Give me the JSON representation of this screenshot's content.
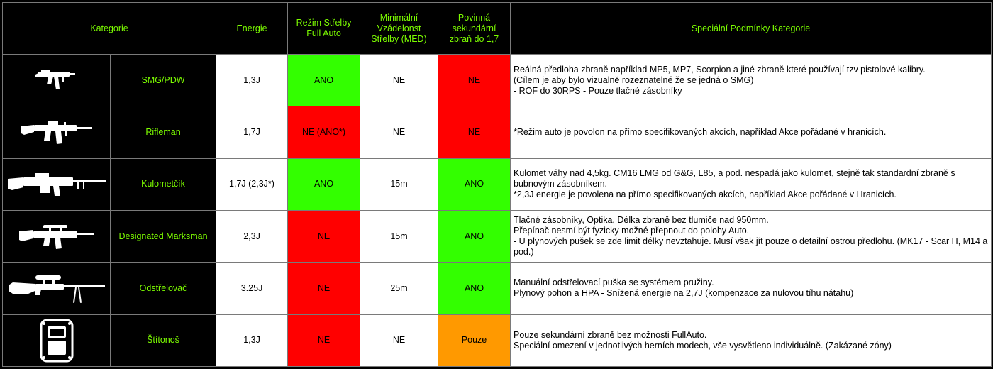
{
  "headers": {
    "kategorie": "Kategorie",
    "energie": "Energie",
    "rezim": "Režim Střelby Full Auto",
    "med": "Minimální Vzádelonst Střelby (MED)",
    "sekundarni": "Povinná sekundární zbraň do 1,7",
    "podminky": "Speciální Podmínky Kategorie"
  },
  "rows": [
    {
      "icon": "smg-icon",
      "category": "SMG/PDW",
      "energy": "1,3J",
      "full_auto": "ANO",
      "full_auto_color": "#33ff00",
      "med": "NE",
      "secondary": "NE",
      "secondary_color": "#ff0000",
      "conditions": [
        "Reálná předloha zbraně například MP5, MP7, Scorpion a jiné zbraně které používají tzv pistolové kalibry.",
        "(Cílem je aby bylo vizualně rozeznatelné že se jedná o SMG)",
        "- ROF do 30RPS - Pouze tlačné zásobníky"
      ]
    },
    {
      "icon": "rifle-icon",
      "category": "Rifleman",
      "energy": "1,7J",
      "full_auto": "NE (ANO*)",
      "full_auto_color": "#ff0000",
      "med": "NE",
      "secondary": "NE",
      "secondary_color": "#ff0000",
      "conditions": [
        "*Režim auto je povolon na přímo specifikovaných akcích, například Akce pořádané v hranicích."
      ]
    },
    {
      "icon": "machine-gun-icon",
      "category": "Kulometčík",
      "energy": "1,7J (2,3J*)",
      "full_auto": "ANO",
      "full_auto_color": "#33ff00",
      "med": "15m",
      "secondary": "ANO",
      "secondary_color": "#33ff00",
      "conditions": [
        "Kulomet váhy nad 4,5kg. CM16 LMG od G&G, L85, a pod. nespadá jako kulomet, stejně tak standardní zbraně s bubnovým zásobníkem.",
        "*2,3J energie je povolena na přímo specifikovaných akcích, například Akce pořádané v Hranicích."
      ]
    },
    {
      "icon": "marksman-rifle-icon",
      "category": "Designated Marksman",
      "energy": "2,3J",
      "full_auto": "NE",
      "full_auto_color": "#ff0000",
      "med": "15m",
      "secondary": "ANO",
      "secondary_color": "#33ff00",
      "conditions": [
        "Tlačné zásobníky, Optika, Délka zbraně bez tlumiče nad 950mm.",
        "Přepínač nesmí být fyzicky možné přepnout do polohy Auto.",
        "- U plynových pušek se zde limit délky nevztahuje. Musí však jít pouze o detailní ostrou předlohu. (MK17 - Scar H, M14 a pod.)"
      ]
    },
    {
      "icon": "sniper-rifle-icon",
      "category": "Odstřelovač",
      "energy": "3.25J",
      "full_auto": "NE",
      "full_auto_color": "#ff0000",
      "med": "25m",
      "secondary": "ANO",
      "secondary_color": "#33ff00",
      "conditions": [
        "Manuální odstřelovací puška se systémem pružiny.",
        "Plynový pohon a HPA - Snížená energie na 2,7J (kompenzace za nulovou tíhu nátahu)"
      ]
    },
    {
      "icon": "shield-icon",
      "category": "Štítonoš",
      "energy": "1,3J",
      "full_auto": "NE",
      "full_auto_color": "#ff0000",
      "med": "NE",
      "secondary": "Pouze",
      "secondary_color": "#ff9900",
      "conditions": [
        "Pouze sekundární zbraně bez možnosti FullAuto.",
        "Speciální omezení v jednotlivých herních modech, vše vysvětleno individuálně. (Zakázané zóny)"
      ]
    }
  ]
}
